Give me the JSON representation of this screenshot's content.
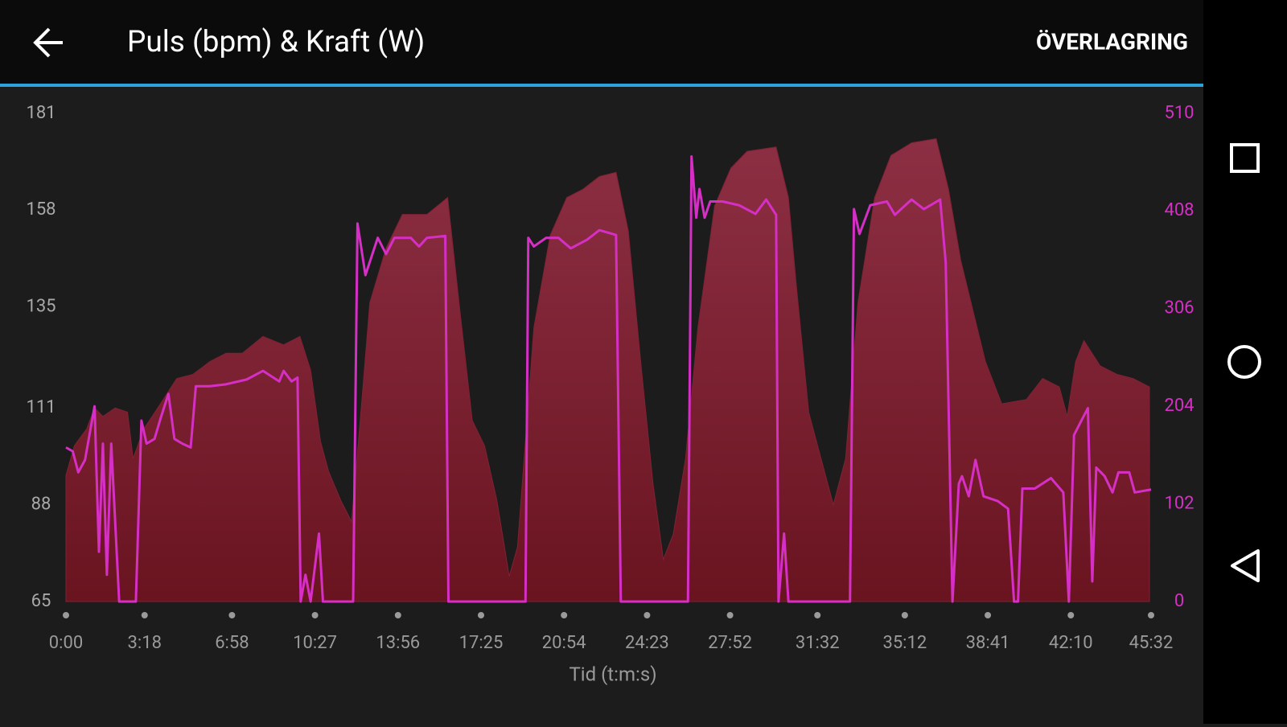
{
  "header": {
    "action": "ÖVERLAGRING"
  },
  "chart_data": {
    "type": "area-line",
    "title": "Puls (bpm) & Kraft (W)",
    "x_label": "Tid (t:m:s)",
    "xlim": [
      0,
      2732
    ],
    "xticks": [
      {
        "value": 0,
        "label": "0:00"
      },
      {
        "value": 198,
        "label": "3:18"
      },
      {
        "value": 418,
        "label": "6:58"
      },
      {
        "value": 627,
        "label": "10:27"
      },
      {
        "value": 836,
        "label": "13:56"
      },
      {
        "value": 1045,
        "label": "17:25"
      },
      {
        "value": 1254,
        "label": "20:54"
      },
      {
        "value": 1463,
        "label": "24:23"
      },
      {
        "value": 1672,
        "label": "27:52"
      },
      {
        "value": 1892,
        "label": "31:32"
      },
      {
        "value": 2112,
        "label": "35:12"
      },
      {
        "value": 2321,
        "label": "38:41"
      },
      {
        "value": 2530,
        "label": "42:10"
      },
      {
        "value": 2732,
        "label": "45:32"
      }
    ],
    "ylim": [
      65,
      181
    ],
    "yticks": [
      65,
      88,
      111,
      135,
      158,
      181
    ],
    "y2lim": [
      0,
      510
    ],
    "y2ticks": [
      0,
      102,
      204,
      306,
      408,
      510
    ],
    "series": [
      {
        "name": "Puls",
        "kind": "area",
        "color": "#7e2235",
        "x": [
          0,
          21,
          52,
          72,
          93,
          124,
          155,
          169,
          196,
          238,
          279,
          320,
          362,
          403,
          444,
          496,
          548,
          589,
          616,
          641,
          661,
          692,
          719,
          740,
          765,
          806,
          847,
          909,
          961,
          992,
          1023,
          1054,
          1085,
          1116,
          1137,
          1178,
          1219,
          1261,
          1302,
          1343,
          1385,
          1416,
          1447,
          1478,
          1504,
          1529,
          1560,
          1591,
          1633,
          1674,
          1715,
          1788,
          1819,
          1839,
          1870,
          1901,
          1932,
          1963,
          1994,
          2036,
          2077,
          2129,
          2191,
          2222,
          2253,
          2284,
          2315,
          2356,
          2418,
          2459,
          2501,
          2521,
          2542,
          2563,
          2604,
          2646,
          2687,
          2728
        ],
        "values": [
          95,
          102,
          106,
          111,
          109,
          111,
          110,
          99,
          106,
          112,
          118,
          119,
          122,
          124,
          124,
          128,
          126,
          128,
          120,
          103,
          96,
          89,
          84,
          107,
          136,
          149,
          157,
          157,
          161,
          134,
          108,
          102,
          89,
          71,
          78,
          130,
          152,
          161,
          163,
          166,
          167,
          153,
          122,
          93,
          75,
          81,
          99,
          130,
          159,
          168,
          172,
          173,
          161,
          140,
          110,
          99,
          88,
          99,
          136,
          161,
          171,
          174,
          175,
          163,
          146,
          134,
          122,
          112,
          113,
          118,
          116,
          109,
          122,
          127,
          121,
          119,
          118,
          116
        ]
      },
      {
        "name": "Kraft",
        "kind": "line",
        "axis": "y2",
        "color": "#d62fc6",
        "x": [
          0,
          17,
          31,
          48,
          72,
          83,
          93,
          103,
          114,
          134,
          176,
          190,
          203,
          223,
          238,
          258,
          273,
          293,
          314,
          327,
          362,
          403,
          455,
          496,
          537,
          548,
          568,
          583,
          591,
          603,
          616,
          637,
          647,
          723,
          734,
          754,
          785,
          806,
          827,
          868,
          889,
          909,
          955,
          963,
          1157,
          1164,
          1178,
          1209,
          1240,
          1271,
          1312,
          1343,
          1385,
          1397,
          1566,
          1575,
          1587,
          1595,
          1608,
          1622,
          1653,
          1695,
          1736,
          1763,
          1788,
          1794,
          1808,
          1819,
          1974,
          1984,
          1998,
          2025,
          2067,
          2087,
          2129,
          2160,
          2201,
          2215,
          2232,
          2248,
          2256,
          2273,
          2290,
          2310,
          2346,
          2372,
          2387,
          2397,
          2408,
          2439,
          2480,
          2511,
          2525,
          2538,
          2559,
          2573,
          2584,
          2594,
          2615,
          2635,
          2650,
          2677,
          2691,
          2732
        ],
        "values": [
          161,
          157,
          135,
          148,
          204,
          52,
          165,
          28,
          165,
          0,
          0,
          189,
          165,
          170,
          191,
          217,
          170,
          165,
          161,
          225,
          225,
          227,
          232,
          241,
          230,
          241,
          230,
          234,
          0,
          28,
          0,
          71,
          0,
          0,
          395,
          341,
          380,
          363,
          380,
          380,
          371,
          380,
          382,
          0,
          0,
          380,
          371,
          380,
          380,
          369,
          378,
          388,
          383,
          0,
          0,
          465,
          401,
          431,
          401,
          418,
          418,
          414,
          405,
          420,
          404,
          0,
          71,
          0,
          0,
          410,
          384,
          414,
          418,
          404,
          420,
          410,
          420,
          354,
          0,
          123,
          131,
          110,
          148,
          110,
          105,
          97,
          0,
          0,
          118,
          118,
          129,
          114,
          0,
          174,
          191,
          202,
          21,
          140,
          131,
          114,
          135,
          135,
          114,
          117
        ]
      }
    ]
  }
}
